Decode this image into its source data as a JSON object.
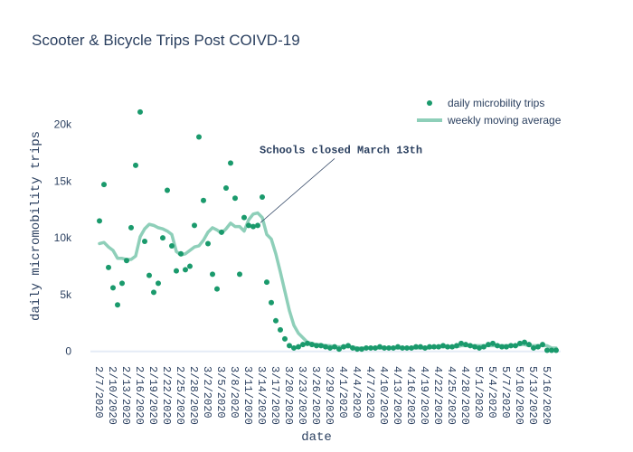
{
  "chart_data": {
    "type": "scatter",
    "title": "Scooter & Bicycle Trips Post COIVD-19",
    "xlabel": "date",
    "ylabel": "daily micromobility trips",
    "xlim": [
      "2020-02-05",
      "2020-05-19"
    ],
    "ylim": [
      -900,
      23000
    ],
    "y_ticks": [
      0,
      5000,
      10000,
      15000,
      20000
    ],
    "y_tick_labels": [
      "0",
      "5k",
      "10k",
      "15k",
      "20k"
    ],
    "x_tick_labels": [
      "2/7/2020",
      "2/10/2020",
      "2/13/2020",
      "2/16/2020",
      "2/19/2020",
      "2/22/2020",
      "2/25/2020",
      "2/28/2020",
      "3/2/2020",
      "3/5/2020",
      "3/8/2020",
      "3/11/2020",
      "3/14/2020",
      "3/17/2020",
      "3/20/2020",
      "3/23/2020",
      "3/26/2020",
      "3/29/2020",
      "4/1/2020",
      "4/4/2020",
      "4/7/2020",
      "4/10/2020",
      "4/13/2020",
      "4/16/2020",
      "4/19/2020",
      "4/22/2020",
      "4/25/2020",
      "4/28/2020",
      "5/1/2020",
      "5/4/2020",
      "5/7/2020",
      "5/10/2020",
      "5/13/2020",
      "5/16/2020"
    ],
    "x_tick_dates": [
      "2020-02-07",
      "2020-02-10",
      "2020-02-13",
      "2020-02-16",
      "2020-02-19",
      "2020-02-22",
      "2020-02-25",
      "2020-02-28",
      "2020-03-02",
      "2020-03-05",
      "2020-03-08",
      "2020-03-11",
      "2020-03-14",
      "2020-03-17",
      "2020-03-20",
      "2020-03-23",
      "2020-03-26",
      "2020-03-29",
      "2020-04-01",
      "2020-04-04",
      "2020-04-07",
      "2020-04-10",
      "2020-04-13",
      "2020-04-16",
      "2020-04-19",
      "2020-04-22",
      "2020-04-25",
      "2020-04-28",
      "2020-05-01",
      "2020-05-04",
      "2020-05-07",
      "2020-05-10",
      "2020-05-13",
      "2020-05-16"
    ],
    "legend_position": "top-right",
    "series": [
      {
        "name": "daily microbility trips",
        "mode": "markers",
        "color": "#1a9a6c",
        "x": [
          "2020-02-07",
          "2020-02-08",
          "2020-02-09",
          "2020-02-10",
          "2020-02-11",
          "2020-02-12",
          "2020-02-13",
          "2020-02-14",
          "2020-02-15",
          "2020-02-16",
          "2020-02-17",
          "2020-02-18",
          "2020-02-19",
          "2020-02-20",
          "2020-02-21",
          "2020-02-22",
          "2020-02-23",
          "2020-02-24",
          "2020-02-25",
          "2020-02-26",
          "2020-02-27",
          "2020-02-28",
          "2020-02-29",
          "2020-03-01",
          "2020-03-02",
          "2020-03-03",
          "2020-03-04",
          "2020-03-05",
          "2020-03-06",
          "2020-03-07",
          "2020-03-08",
          "2020-03-09",
          "2020-03-10",
          "2020-03-11",
          "2020-03-12",
          "2020-03-13",
          "2020-03-14",
          "2020-03-15",
          "2020-03-16",
          "2020-03-17",
          "2020-03-18",
          "2020-03-19",
          "2020-03-20",
          "2020-03-21",
          "2020-03-22",
          "2020-03-23",
          "2020-03-24",
          "2020-03-25",
          "2020-03-26",
          "2020-03-27",
          "2020-03-28",
          "2020-03-29",
          "2020-03-30",
          "2020-03-31",
          "2020-04-01",
          "2020-04-02",
          "2020-04-03",
          "2020-04-04",
          "2020-04-05",
          "2020-04-06",
          "2020-04-07",
          "2020-04-08",
          "2020-04-09",
          "2020-04-10",
          "2020-04-11",
          "2020-04-12",
          "2020-04-13",
          "2020-04-14",
          "2020-04-15",
          "2020-04-16",
          "2020-04-17",
          "2020-04-18",
          "2020-04-19",
          "2020-04-20",
          "2020-04-21",
          "2020-04-22",
          "2020-04-23",
          "2020-04-24",
          "2020-04-25",
          "2020-04-26",
          "2020-04-27",
          "2020-04-28",
          "2020-04-29",
          "2020-04-30",
          "2020-05-01",
          "2020-05-02",
          "2020-05-03",
          "2020-05-04",
          "2020-05-05",
          "2020-05-06",
          "2020-05-07",
          "2020-05-08",
          "2020-05-09",
          "2020-05-10",
          "2020-05-11",
          "2020-05-12",
          "2020-05-13",
          "2020-05-14",
          "2020-05-15",
          "2020-05-16",
          "2020-05-17",
          "2020-05-18"
        ],
        "y": [
          11500,
          14700,
          7400,
          5600,
          4100,
          6000,
          8000,
          10900,
          16400,
          21100,
          9700,
          6700,
          5200,
          6000,
          10000,
          14200,
          9300,
          7100,
          8600,
          7200,
          7500,
          11100,
          18900,
          13300,
          9500,
          6800,
          5500,
          10500,
          14400,
          16600,
          13500,
          6800,
          11800,
          11100,
          11000,
          11100,
          13600,
          6100,
          4300,
          2700,
          1900,
          1100,
          500,
          300,
          400,
          600,
          700,
          600,
          500,
          500,
          400,
          300,
          400,
          200,
          400,
          500,
          300,
          200,
          200,
          300,
          300,
          300,
          400,
          300,
          300,
          300,
          400,
          300,
          300,
          300,
          400,
          400,
          300,
          400,
          400,
          400,
          500,
          400,
          400,
          500,
          700,
          600,
          500,
          400,
          300,
          400,
          600,
          700,
          500,
          400,
          400,
          500,
          500,
          700,
          800,
          600,
          300,
          400,
          600,
          100,
          100,
          100
        ]
      },
      {
        "name": "weekly moving average",
        "mode": "lines",
        "color": "#8ecfb9",
        "x": [
          "2020-02-07",
          "2020-02-08",
          "2020-02-09",
          "2020-02-10",
          "2020-02-11",
          "2020-02-12",
          "2020-02-13",
          "2020-02-14",
          "2020-02-15",
          "2020-02-16",
          "2020-02-17",
          "2020-02-18",
          "2020-02-19",
          "2020-02-20",
          "2020-02-21",
          "2020-02-22",
          "2020-02-23",
          "2020-02-24",
          "2020-02-25",
          "2020-02-26",
          "2020-02-27",
          "2020-02-28",
          "2020-02-29",
          "2020-03-01",
          "2020-03-02",
          "2020-03-03",
          "2020-03-04",
          "2020-03-05",
          "2020-03-06",
          "2020-03-07",
          "2020-03-08",
          "2020-03-09",
          "2020-03-10",
          "2020-03-11",
          "2020-03-12",
          "2020-03-13",
          "2020-03-14",
          "2020-03-15",
          "2020-03-16",
          "2020-03-17",
          "2020-03-18",
          "2020-03-19",
          "2020-03-20",
          "2020-03-21",
          "2020-03-22",
          "2020-03-23",
          "2020-03-24",
          "2020-03-25",
          "2020-03-26",
          "2020-03-27",
          "2020-03-28",
          "2020-03-29",
          "2020-03-30",
          "2020-03-31",
          "2020-04-01",
          "2020-04-02",
          "2020-04-03",
          "2020-04-04",
          "2020-04-05",
          "2020-04-06",
          "2020-04-07",
          "2020-04-08",
          "2020-04-09",
          "2020-04-10",
          "2020-04-11",
          "2020-04-12",
          "2020-04-13",
          "2020-04-14",
          "2020-04-15",
          "2020-04-16",
          "2020-04-17",
          "2020-04-18",
          "2020-04-19",
          "2020-04-20",
          "2020-04-21",
          "2020-04-22",
          "2020-04-23",
          "2020-04-24",
          "2020-04-25",
          "2020-04-26",
          "2020-04-27",
          "2020-04-28",
          "2020-04-29",
          "2020-04-30",
          "2020-05-01",
          "2020-05-02",
          "2020-05-03",
          "2020-05-04",
          "2020-05-05",
          "2020-05-06",
          "2020-05-07",
          "2020-05-08",
          "2020-05-09",
          "2020-05-10",
          "2020-05-11",
          "2020-05-12",
          "2020-05-13",
          "2020-05-14",
          "2020-05-15",
          "2020-05-16",
          "2020-05-17",
          "2020-05-18"
        ],
        "y": [
          9500,
          9600,
          9200,
          8900,
          8200,
          8200,
          8100,
          8100,
          8400,
          10100,
          10800,
          11200,
          11100,
          10900,
          10800,
          10600,
          10300,
          8800,
          8500,
          8600,
          8900,
          9200,
          9300,
          9800,
          10500,
          10900,
          10700,
          10400,
          10800,
          11300,
          11000,
          11000,
          10600,
          11600,
          12100,
          12200,
          11800,
          10300,
          9900,
          8600,
          7000,
          5300,
          3600,
          2300,
          1600,
          1200,
          800,
          700,
          600,
          600,
          500,
          500,
          400,
          400,
          400,
          400,
          400,
          300,
          300,
          300,
          300,
          300,
          300,
          300,
          300,
          300,
          300,
          300,
          300,
          300,
          300,
          300,
          300,
          300,
          400,
          400,
          400,
          400,
          400,
          400,
          500,
          500,
          500,
          500,
          500,
          500,
          500,
          500,
          500,
          500,
          500,
          500,
          500,
          600,
          600,
          500,
          500,
          500,
          500,
          500,
          300,
          300
        ]
      }
    ],
    "annotations": [
      {
        "text": "Schools closed March 13th",
        "x": "2020-03-13",
        "y": 11100
      }
    ]
  }
}
